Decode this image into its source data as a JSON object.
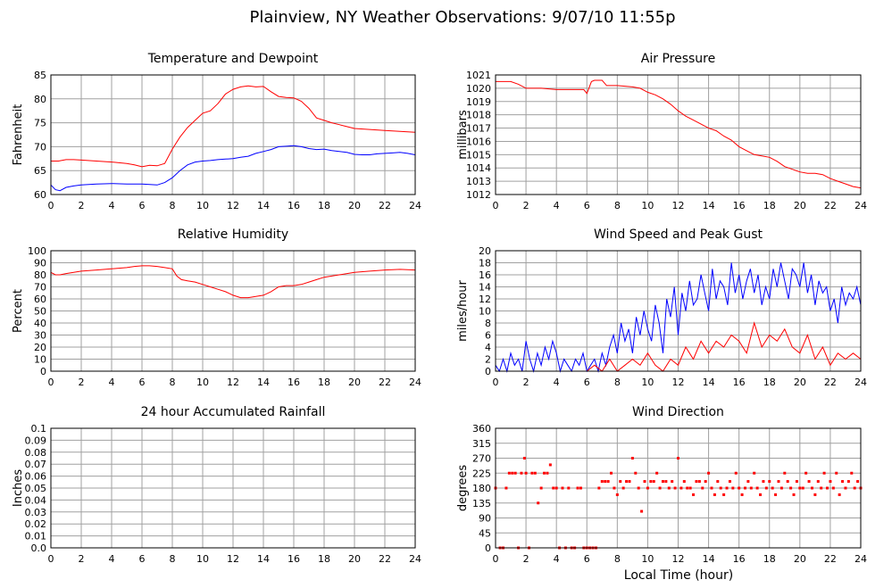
{
  "title": "Plainview, NY Weather Observations: 9/07/10 11:55p",
  "xlabel": "Local Time (hour)",
  "colors": {
    "red": "#ff0000",
    "blue": "#0000ff",
    "grid": "#a0a0a0",
    "axis": "#000000"
  },
  "chart_data": [
    {
      "id": "temp",
      "type": "line",
      "title": "Temperature and Dewpoint",
      "ylabel": "Fahrenheit",
      "xlim": [
        0,
        24
      ],
      "ylim": [
        60,
        85
      ],
      "yticks": [
        60,
        65,
        70,
        75,
        80,
        85
      ],
      "xticks": [
        0,
        2,
        4,
        6,
        8,
        10,
        12,
        14,
        16,
        18,
        20,
        22,
        24
      ],
      "grid": true,
      "series": [
        {
          "color": "#ff0000",
          "x": [
            0,
            0.5,
            1,
            1.5,
            2,
            3,
            4,
            5,
            5.5,
            6,
            6.5,
            7,
            7.5,
            8,
            8.5,
            9,
            9.5,
            10,
            10.5,
            11,
            11.5,
            12,
            12.5,
            13,
            13.5,
            14,
            14.5,
            15,
            15.5,
            16,
            16.5,
            17,
            17.5,
            18,
            18.5,
            19,
            19.5,
            20,
            21,
            22,
            23,
            24
          ],
          "y": [
            67,
            67,
            67.3,
            67.3,
            67.2,
            67,
            66.8,
            66.5,
            66.2,
            65.8,
            66.1,
            66,
            66.5,
            69.5,
            72,
            74,
            75.5,
            77,
            77.5,
            79,
            81,
            82,
            82.5,
            82.7,
            82.5,
            82.6,
            81.5,
            80.5,
            80.3,
            80.2,
            79.5,
            78,
            76,
            75.5,
            75,
            74.6,
            74.2,
            73.8,
            73.6,
            73.4,
            73.2,
            73
          ]
        },
        {
          "color": "#0000ff",
          "x": [
            0,
            0.3,
            0.6,
            1,
            1.5,
            2,
            3,
            4,
            5,
            6,
            6.5,
            7,
            7.5,
            8,
            8.5,
            9,
            9.5,
            10,
            10.5,
            11,
            11.5,
            12,
            12.5,
            13,
            13.5,
            14,
            14.5,
            15,
            15.5,
            16,
            16.5,
            17,
            17.5,
            18,
            18.5,
            19,
            19.5,
            20,
            20.5,
            21,
            21.5,
            22,
            22.5,
            23,
            23.5,
            24
          ],
          "y": [
            62,
            61,
            60.8,
            61.5,
            61.8,
            62,
            62.2,
            62.3,
            62.2,
            62.2,
            62.1,
            62,
            62.5,
            63.5,
            65,
            66.2,
            66.8,
            67,
            67.1,
            67.3,
            67.4,
            67.5,
            67.8,
            68,
            68.6,
            69,
            69.4,
            70,
            70.1,
            70.2,
            70,
            69.6,
            69.4,
            69.5,
            69.2,
            69,
            68.8,
            68.4,
            68.3,
            68.3,
            68.5,
            68.6,
            68.7,
            68.8,
            68.6,
            68.3
          ]
        }
      ]
    },
    {
      "id": "pressure",
      "type": "line",
      "title": "Air Pressure",
      "ylabel": "millibars",
      "xlim": [
        0,
        24
      ],
      "ylim": [
        1012,
        1021
      ],
      "yticks": [
        1012,
        1013,
        1014,
        1015,
        1016,
        1017,
        1018,
        1019,
        1020,
        1021
      ],
      "xticks": [
        0,
        2,
        4,
        6,
        8,
        10,
        12,
        14,
        16,
        18,
        20,
        22,
        24
      ],
      "grid": true,
      "series": [
        {
          "color": "#ff0000",
          "x": [
            0,
            1,
            1.5,
            2,
            3,
            4,
            5,
            5.8,
            6,
            6.3,
            6.5,
            7,
            7.3,
            8,
            9,
            9.5,
            10,
            10.5,
            11,
            11.5,
            12,
            12.5,
            13,
            13.5,
            14,
            14.5,
            15,
            15.5,
            16,
            16.5,
            17,
            17.5,
            18,
            18.5,
            19,
            19.5,
            20,
            20.5,
            21,
            21.5,
            22,
            22.5,
            23,
            23.5,
            24
          ],
          "y": [
            1020.5,
            1020.5,
            1020.3,
            1020,
            1020,
            1019.9,
            1019.9,
            1019.9,
            1019.6,
            1020.5,
            1020.6,
            1020.6,
            1020.2,
            1020.2,
            1020.1,
            1020,
            1019.7,
            1019.5,
            1019.2,
            1018.8,
            1018.3,
            1017.9,
            1017.6,
            1017.3,
            1017,
            1016.8,
            1016.4,
            1016.1,
            1015.6,
            1015.3,
            1015,
            1014.9,
            1014.8,
            1014.5,
            1014.1,
            1013.9,
            1013.7,
            1013.6,
            1013.6,
            1013.5,
            1013.2,
            1013,
            1012.8,
            1012.6,
            1012.5
          ]
        }
      ]
    },
    {
      "id": "humidity",
      "type": "line",
      "title": "Relative Humidity",
      "ylabel": "Percent",
      "xlim": [
        0,
        24
      ],
      "ylim": [
        0,
        100
      ],
      "yticks": [
        0,
        10,
        20,
        30,
        40,
        50,
        60,
        70,
        80,
        90,
        100
      ],
      "xticks": [
        0,
        2,
        4,
        6,
        8,
        10,
        12,
        14,
        16,
        18,
        20,
        22,
        24
      ],
      "grid": true,
      "series": [
        {
          "color": "#ff0000",
          "x": [
            0,
            0.3,
            0.6,
            1,
            1.5,
            2,
            3,
            4,
            5,
            5.5,
            6,
            6.5,
            7,
            7.5,
            8,
            8.3,
            8.6,
            9,
            9.5,
            10,
            10.5,
            11,
            11.5,
            12,
            12.5,
            13,
            13.5,
            14,
            14.5,
            15,
            15.5,
            16,
            16.5,
            17,
            17.5,
            18,
            18.5,
            19,
            20,
            21,
            22,
            23,
            24
          ],
          "y": [
            82,
            80,
            80,
            81,
            82,
            83,
            84,
            85,
            86,
            87,
            87.5,
            87.5,
            87,
            86,
            85,
            79,
            76,
            75,
            74,
            72,
            70,
            68,
            66,
            63,
            61,
            61,
            62,
            63,
            66,
            70,
            71,
            71,
            72,
            74,
            76,
            78,
            79,
            80,
            82,
            83,
            84,
            84.5,
            84
          ]
        }
      ]
    },
    {
      "id": "wind",
      "type": "line",
      "title": "Wind Speed and Peak Gust",
      "ylabel": "miles/hour",
      "xlim": [
        0,
        24
      ],
      "ylim": [
        0,
        20
      ],
      "yticks": [
        0,
        2,
        4,
        6,
        8,
        10,
        12,
        14,
        16,
        18,
        20
      ],
      "xticks": [
        0,
        2,
        4,
        6,
        8,
        10,
        12,
        14,
        16,
        18,
        20,
        22,
        24
      ],
      "grid": true,
      "series": [
        {
          "color": "#0000ff",
          "x": [
            0,
            0.25,
            0.5,
            0.75,
            1,
            1.25,
            1.5,
            1.75,
            2,
            2.25,
            2.5,
            2.75,
            3,
            3.25,
            3.5,
            3.75,
            4,
            4.25,
            4.5,
            4.75,
            5,
            5.25,
            5.5,
            5.75,
            6,
            6.25,
            6.5,
            6.75,
            7,
            7.25,
            7.5,
            7.75,
            8,
            8.25,
            8.5,
            8.75,
            9,
            9.25,
            9.5,
            9.75,
            10,
            10.25,
            10.5,
            10.75,
            11,
            11.25,
            11.5,
            11.75,
            12,
            12.25,
            12.5,
            12.75,
            13,
            13.25,
            13.5,
            13.75,
            14,
            14.25,
            14.5,
            14.75,
            15,
            15.25,
            15.5,
            15.75,
            16,
            16.25,
            16.5,
            16.75,
            17,
            17.25,
            17.5,
            17.75,
            18,
            18.25,
            18.5,
            18.75,
            19,
            19.25,
            19.5,
            19.75,
            20,
            20.25,
            20.5,
            20.75,
            21,
            21.25,
            21.5,
            21.75,
            22,
            22.25,
            22.5,
            22.75,
            23,
            23.25,
            23.5,
            23.75,
            24
          ],
          "y": [
            1,
            0,
            2,
            0,
            3,
            1,
            2,
            0,
            5,
            2,
            0,
            3,
            1,
            4,
            2,
            5,
            3,
            0,
            2,
            1,
            0,
            2,
            1,
            3,
            0,
            1,
            2,
            0,
            3,
            1,
            4,
            6,
            3,
            8,
            5,
            7,
            3,
            9,
            6,
            10,
            7,
            5,
            11,
            8,
            3,
            12,
            9,
            14,
            6,
            13,
            10,
            15,
            11,
            12,
            16,
            13,
            10,
            17,
            12,
            15,
            14,
            11,
            18,
            13,
            16,
            12,
            15,
            17,
            13,
            16,
            11,
            14,
            12,
            17,
            14,
            18,
            15,
            12,
            17,
            16,
            14,
            18,
            13,
            16,
            11,
            15,
            13,
            14,
            10,
            12,
            8,
            14,
            11,
            13,
            12,
            14,
            11
          ]
        },
        {
          "color": "#ff0000",
          "x": [
            0,
            6,
            6.5,
            7,
            7.5,
            8,
            8.5,
            9,
            9.5,
            10,
            10.5,
            11,
            11.5,
            12,
            12.5,
            13,
            13.5,
            14,
            14.5,
            15,
            15.5,
            16,
            16.5,
            17,
            17.5,
            18,
            18.5,
            19,
            19.5,
            20,
            20.5,
            21,
            21.5,
            22,
            22.5,
            23,
            23.5,
            24
          ],
          "y": [
            0,
            0,
            1,
            0,
            2,
            0,
            1,
            2,
            1,
            3,
            1,
            0,
            2,
            1,
            4,
            2,
            5,
            3,
            5,
            4,
            6,
            5,
            3,
            8,
            4,
            6,
            5,
            7,
            4,
            3,
            6,
            2,
            4,
            1,
            3,
            2,
            3,
            2
          ]
        }
      ]
    },
    {
      "id": "rain",
      "type": "line",
      "title": "24 hour Accumulated Rainfall",
      "ylabel": "Inches",
      "xlim": [
        0,
        24
      ],
      "ylim": [
        0,
        0.1
      ],
      "yticks": [
        "0.0",
        "0.01",
        "0.02",
        "0.03",
        "0.04",
        "0.05",
        "0.06",
        "0.07",
        "0.08",
        "0.09",
        "0.1"
      ],
      "xticks": [
        0,
        2,
        4,
        6,
        8,
        10,
        12,
        14,
        16,
        18,
        20,
        22,
        24
      ],
      "grid": true,
      "series": [
        {
          "color": "#ff0000",
          "x": [
            0,
            24
          ],
          "y": [
            0,
            0
          ]
        }
      ]
    },
    {
      "id": "direction",
      "type": "scatter",
      "title": "Wind Direction",
      "ylabel": "degrees",
      "xlim": [
        0,
        24
      ],
      "ylim": [
        0,
        360
      ],
      "yticks": [
        0,
        45,
        90,
        135,
        180,
        225,
        270,
        315,
        360
      ],
      "xticks": [
        0,
        2,
        4,
        6,
        8,
        10,
        12,
        14,
        16,
        18,
        20,
        22,
        24
      ],
      "grid": true,
      "series": [
        {
          "color": "#ff0000",
          "x": [
            0,
            0.3,
            0.5,
            0.7,
            0.9,
            1.1,
            1.3,
            1.5,
            1.7,
            1.9,
            2.0,
            2.2,
            2.4,
            2.6,
            2.8,
            3.0,
            3.2,
            3.4,
            3.6,
            3.8,
            4.0,
            4.2,
            4.4,
            4.6,
            4.8,
            5.0,
            5.2,
            5.4,
            5.6,
            5.8,
            6.0,
            6.2,
            6.4,
            6.6,
            6.8,
            7.0,
            7.2,
            7.4,
            7.6,
            7.8,
            8.0,
            8.2,
            8.4,
            8.6,
            8.8,
            9.0,
            9.2,
            9.4,
            9.6,
            9.8,
            10.0,
            10.2,
            10.4,
            10.6,
            10.8,
            11.0,
            11.2,
            11.4,
            11.6,
            11.8,
            12.0,
            12.2,
            12.4,
            12.6,
            12.8,
            13.0,
            13.2,
            13.4,
            13.6,
            13.8,
            14.0,
            14.2,
            14.4,
            14.6,
            14.8,
            15.0,
            15.2,
            15.4,
            15.6,
            15.8,
            16.0,
            16.2,
            16.4,
            16.6,
            16.8,
            17.0,
            17.2,
            17.4,
            17.6,
            17.8,
            18.0,
            18.2,
            18.4,
            18.6,
            18.8,
            19.0,
            19.2,
            19.4,
            19.6,
            19.8,
            20.0,
            20.2,
            20.4,
            20.6,
            20.8,
            21.0,
            21.2,
            21.4,
            21.6,
            21.8,
            22.0,
            22.2,
            22.4,
            22.6,
            22.8,
            23.0,
            23.2,
            23.4,
            23.6,
            23.8,
            24.0
          ],
          "y": [
            180,
            0,
            0,
            180,
            225,
            225,
            225,
            0,
            225,
            270,
            225,
            0,
            225,
            225,
            135,
            180,
            225,
            225,
            250,
            180,
            180,
            0,
            180,
            0,
            180,
            0,
            0,
            180,
            180,
            0,
            0,
            0,
            0,
            0,
            180,
            200,
            200,
            200,
            225,
            180,
            160,
            200,
            180,
            200,
            200,
            270,
            225,
            180,
            110,
            200,
            180,
            200,
            200,
            225,
            180,
            200,
            200,
            180,
            200,
            180,
            270,
            180,
            200,
            180,
            180,
            160,
            200,
            200,
            180,
            200,
            225,
            180,
            160,
            200,
            180,
            160,
            180,
            200,
            180,
            225,
            180,
            160,
            180,
            200,
            180,
            225,
            180,
            160,
            200,
            180,
            200,
            180,
            160,
            200,
            180,
            225,
            200,
            180,
            160,
            200,
            180,
            180,
            225,
            200,
            180,
            160,
            200,
            180,
            225,
            180,
            200,
            180,
            225,
            160,
            200,
            180,
            200,
            225,
            180,
            200,
            180
          ]
        }
      ]
    }
  ]
}
